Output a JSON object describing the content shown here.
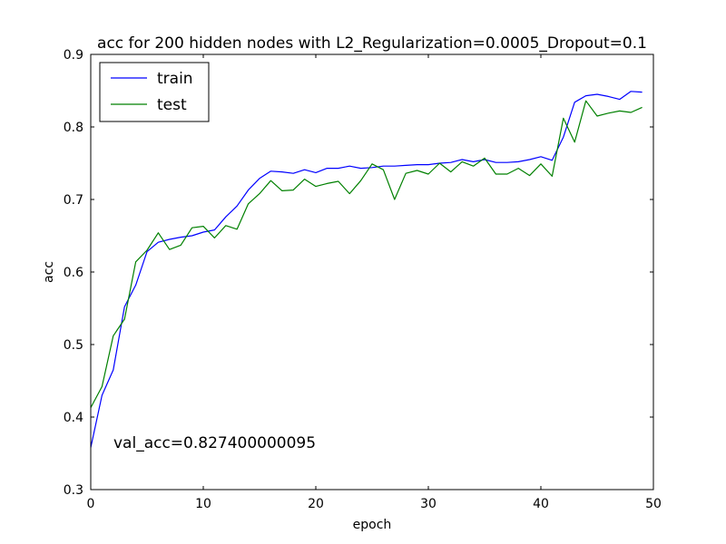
{
  "chart_data": {
    "type": "line",
    "title": "acc for 200 hidden nodes with L2_Regularization=0.0005_Dropout=0.1",
    "xlabel": "epoch",
    "ylabel": "acc",
    "xlim": [
      0,
      50
    ],
    "ylim": [
      0.3,
      0.9
    ],
    "xticks": [
      0,
      10,
      20,
      30,
      40,
      50
    ],
    "xtick_labels": [
      "0",
      "10",
      "20",
      "30",
      "40",
      "50"
    ],
    "yticks": [
      0.3,
      0.4,
      0.5,
      0.6,
      0.7,
      0.8,
      0.9
    ],
    "ytick_labels": [
      "0.3",
      "0.4",
      "0.5",
      "0.6",
      "0.7",
      "0.8",
      "0.9"
    ],
    "grid": false,
    "legend_position": "top-left",
    "annotation": "val_acc=0.827400000095",
    "x": [
      0,
      1,
      2,
      3,
      4,
      5,
      6,
      7,
      8,
      9,
      10,
      11,
      12,
      13,
      14,
      15,
      16,
      17,
      18,
      19,
      20,
      21,
      22,
      23,
      24,
      25,
      26,
      27,
      28,
      29,
      30,
      31,
      32,
      33,
      34,
      35,
      36,
      37,
      38,
      39,
      40,
      41,
      42,
      43,
      44,
      45,
      46,
      47,
      48,
      49
    ],
    "series": [
      {
        "name": "train",
        "color": "#0000ff",
        "values": [
          0.358,
          0.43,
          0.465,
          0.552,
          0.582,
          0.628,
          0.641,
          0.645,
          0.648,
          0.65,
          0.655,
          0.658,
          0.676,
          0.691,
          0.713,
          0.729,
          0.739,
          0.738,
          0.736,
          0.741,
          0.737,
          0.743,
          0.743,
          0.746,
          0.743,
          0.744,
          0.746,
          0.746,
          0.747,
          0.748,
          0.748,
          0.75,
          0.751,
          0.755,
          0.752,
          0.755,
          0.751,
          0.751,
          0.752,
          0.755,
          0.759,
          0.754,
          0.786,
          0.834,
          0.843,
          0.845,
          0.842,
          0.838,
          0.849,
          0.848
        ]
      },
      {
        "name": "test",
        "color": "#008000",
        "values": [
          0.413,
          0.442,
          0.512,
          0.535,
          0.614,
          0.63,
          0.654,
          0.631,
          0.637,
          0.661,
          0.663,
          0.647,
          0.664,
          0.659,
          0.694,
          0.708,
          0.726,
          0.712,
          0.713,
          0.728,
          0.718,
          0.722,
          0.725,
          0.708,
          0.726,
          0.749,
          0.741,
          0.7,
          0.736,
          0.74,
          0.735,
          0.75,
          0.738,
          0.752,
          0.746,
          0.757,
          0.735,
          0.735,
          0.743,
          0.733,
          0.749,
          0.732,
          0.812,
          0.779,
          0.836,
          0.815,
          0.819,
          0.822,
          0.82,
          0.827
        ]
      }
    ]
  }
}
